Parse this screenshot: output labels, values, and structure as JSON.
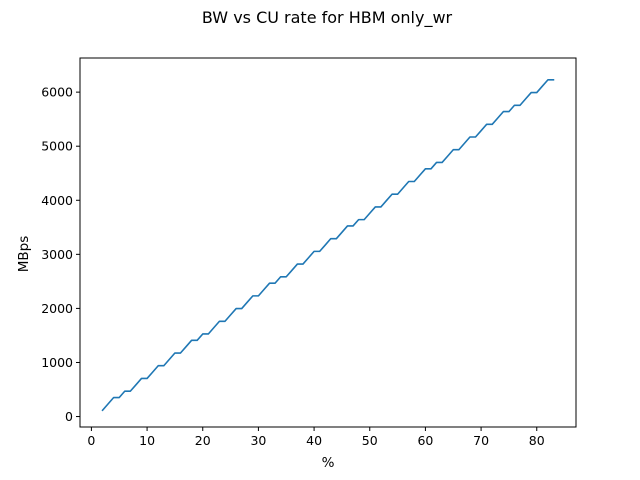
{
  "chart_data": {
    "type": "line",
    "title": "BW vs CU rate for HBM only_wr",
    "xlabel": "%",
    "ylabel": "MBps",
    "xlim": [
      -2.05,
      87.05
    ],
    "ylim": [
      -193.3,
      6631.3
    ],
    "xticks": [
      0,
      10,
      20,
      30,
      40,
      50,
      60,
      70,
      80
    ],
    "yticks": [
      0,
      1000,
      2000,
      3000,
      4000,
      5000,
      6000
    ],
    "grid": false,
    "legend": "none",
    "series": [
      {
        "name": "",
        "color": "#1f77b4",
        "x": [
          2,
          3,
          4,
          5,
          6,
          7,
          8,
          9,
          10,
          11,
          12,
          13,
          14,
          15,
          16,
          17,
          18,
          19,
          20,
          21,
          22,
          23,
          24,
          25,
          26,
          27,
          28,
          29,
          30,
          31,
          32,
          33,
          34,
          35,
          36,
          37,
          38,
          39,
          40,
          41,
          42,
          43,
          44,
          45,
          46,
          47,
          48,
          49,
          50,
          51,
          52,
          53,
          54,
          55,
          56,
          57,
          58,
          59,
          60,
          61,
          62,
          63,
          64,
          65,
          66,
          67,
          68,
          69,
          70,
          71,
          72,
          73,
          74,
          75,
          76,
          77,
          78,
          79,
          80,
          81,
          82,
          83
        ],
        "y": [
          117,
          235,
          352,
          352,
          470,
          470,
          587,
          705,
          705,
          822,
          940,
          940,
          1057,
          1175,
          1175,
          1292,
          1410,
          1410,
          1527,
          1527,
          1645,
          1762,
          1762,
          1880,
          1997,
          1997,
          2115,
          2232,
          2232,
          2350,
          2467,
          2467,
          2585,
          2585,
          2702,
          2820,
          2820,
          2937,
          3055,
          3055,
          3172,
          3290,
          3290,
          3407,
          3525,
          3525,
          3642,
          3642,
          3760,
          3877,
          3877,
          3995,
          4112,
          4112,
          4230,
          4347,
          4347,
          4465,
          4582,
          4582,
          4700,
          4700,
          4817,
          4935,
          4935,
          5052,
          5170,
          5170,
          5287,
          5405,
          5405,
          5522,
          5640,
          5640,
          5757,
          5757,
          5875,
          5992,
          5992,
          6110,
          6227,
          6227
        ]
      }
    ]
  }
}
